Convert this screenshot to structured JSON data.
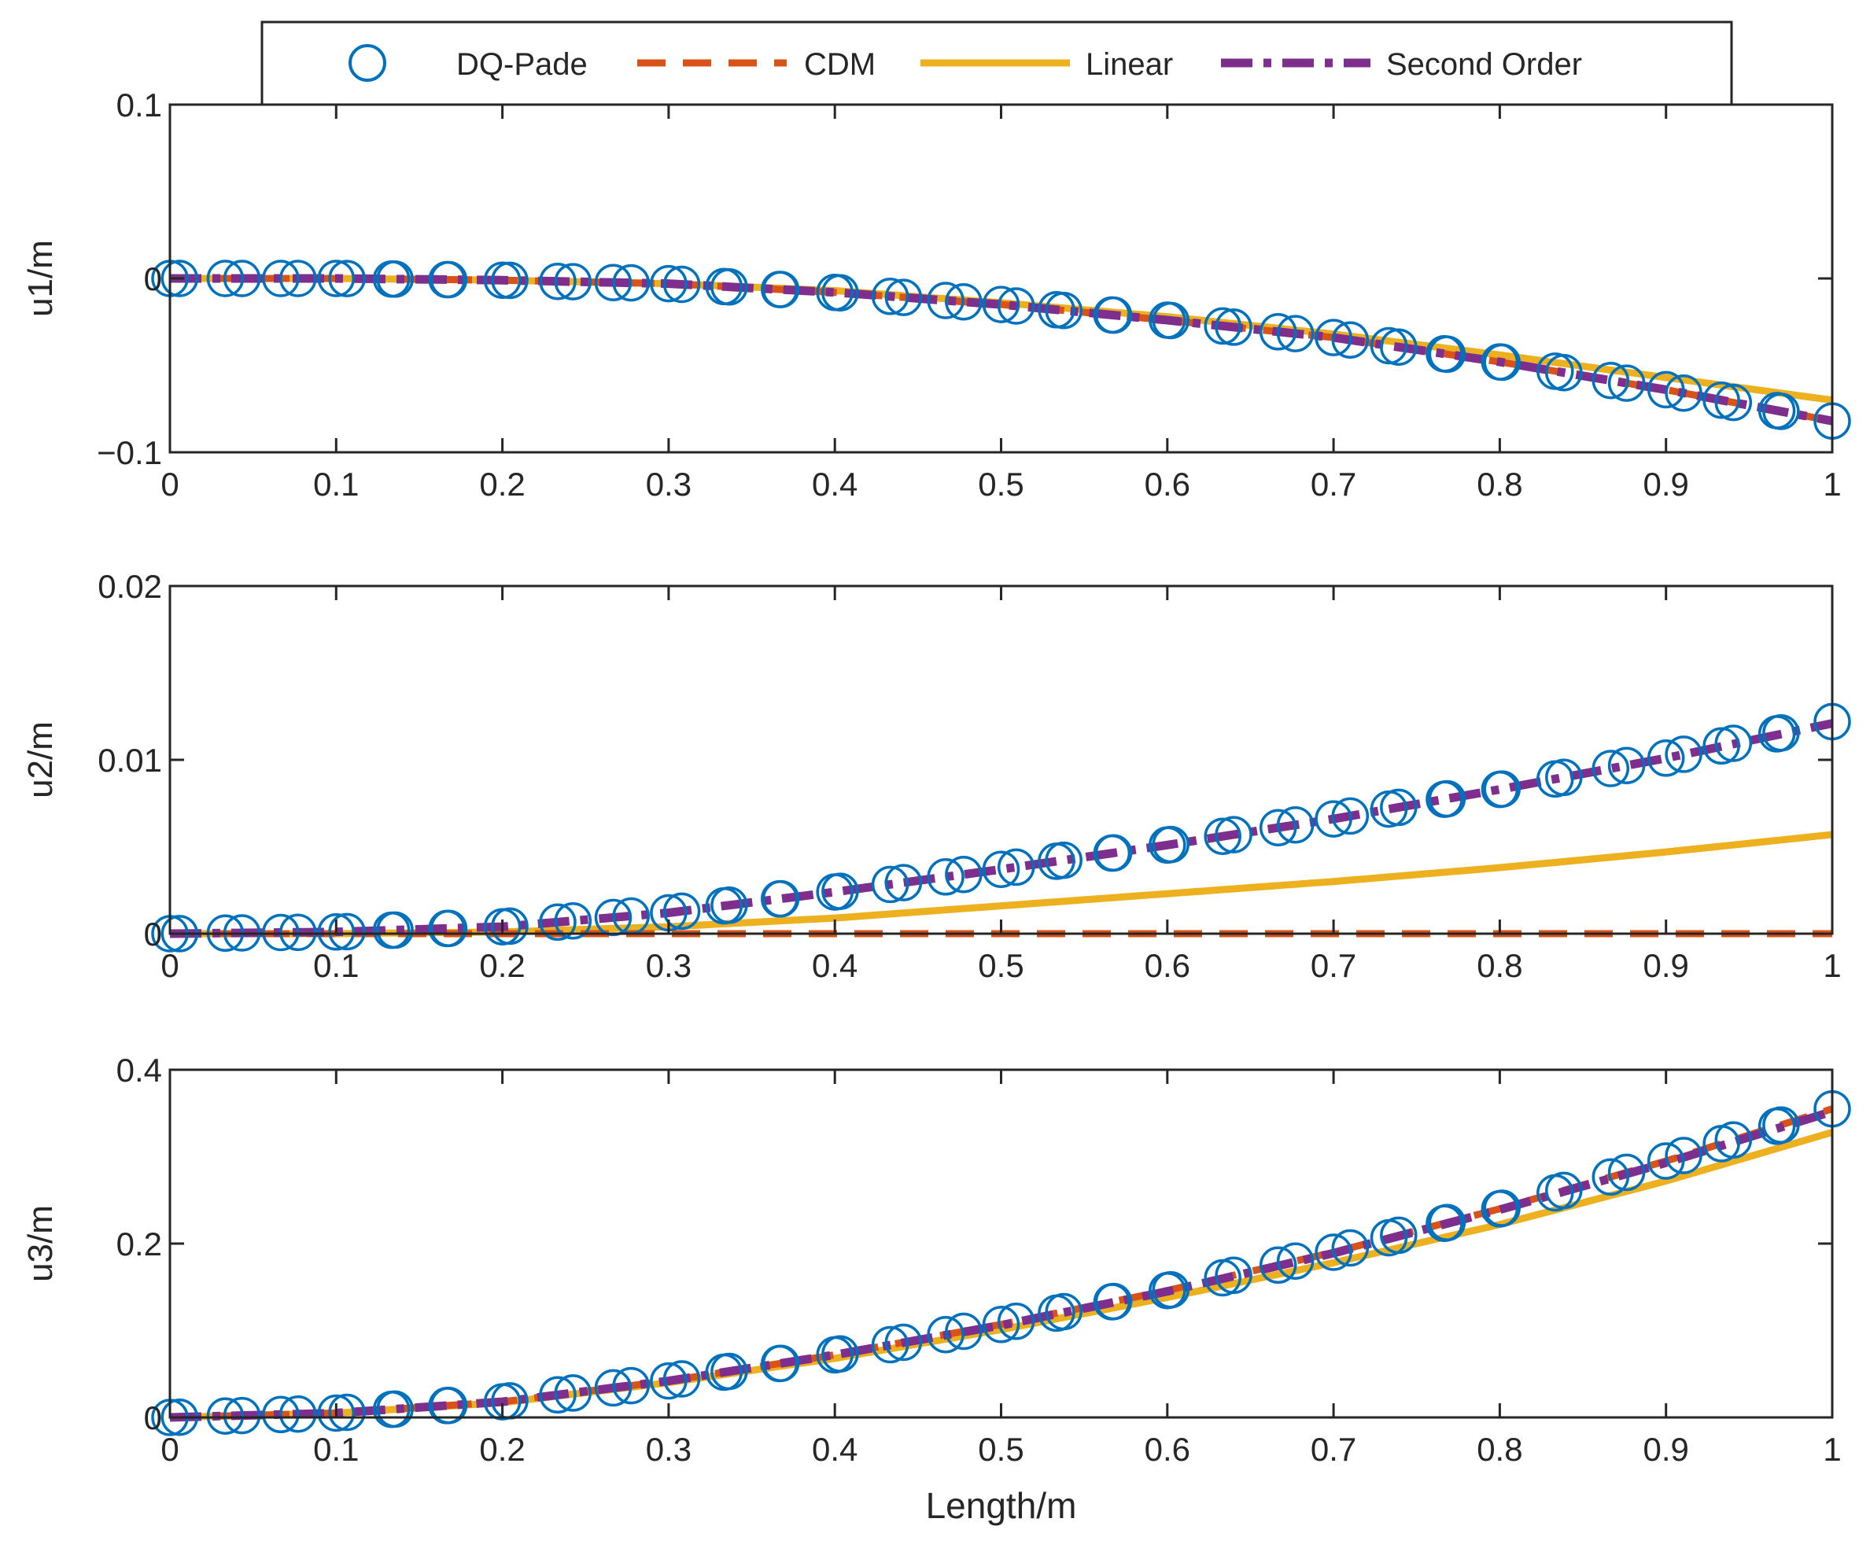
{
  "legend": {
    "entries": [
      {
        "label": "DQ-Pade",
        "style": "marker-circle",
        "color": "#0072BD"
      },
      {
        "label": "CDM",
        "style": "dashed",
        "color": "#D95319"
      },
      {
        "label": "Linear",
        "style": "solid",
        "color": "#EDB120"
      },
      {
        "label": "Second Order",
        "style": "dashdot",
        "color": "#7E2F8E"
      }
    ]
  },
  "chart_data": [
    {
      "type": "line",
      "title": "",
      "xlabel": "",
      "ylabel": "u1/m",
      "xlim": [
        0,
        1
      ],
      "ylim": [
        -0.1,
        0.1
      ],
      "xticks": [
        0,
        0.1,
        0.2,
        0.3,
        0.4,
        0.5,
        0.6,
        0.7,
        0.8,
        0.9,
        1
      ],
      "xtick_labels": [
        "0",
        "0.1",
        "0.2",
        "0.3",
        "0.4",
        "0.5",
        "0.6",
        "0.7",
        "0.8",
        "0.9",
        "1"
      ],
      "yticks": [
        -0.1,
        0,
        0.1
      ],
      "ytick_labels": [
        "−0.1",
        "0",
        "0.1"
      ],
      "x": [
        0,
        0.1,
        0.2,
        0.3,
        0.4,
        0.5,
        0.6,
        0.7,
        0.8,
        0.9,
        1.0
      ],
      "series": [
        {
          "name": "DQ-Pade",
          "values": [
            0,
            0,
            -0.001,
            -0.003,
            -0.008,
            -0.015,
            -0.024,
            -0.034,
            -0.048,
            -0.064,
            -0.082
          ]
        },
        {
          "name": "CDM",
          "values": [
            0,
            0,
            -0.001,
            -0.003,
            -0.008,
            -0.015,
            -0.024,
            -0.034,
            -0.048,
            -0.064,
            -0.082
          ]
        },
        {
          "name": "Linear",
          "values": [
            0,
            0,
            -0.001,
            -0.003,
            -0.007,
            -0.014,
            -0.022,
            -0.032,
            -0.044,
            -0.057,
            -0.07
          ]
        },
        {
          "name": "Second Order",
          "values": [
            0,
            0,
            -0.001,
            -0.003,
            -0.008,
            -0.015,
            -0.024,
            -0.034,
            -0.048,
            -0.064,
            -0.082
          ]
        }
      ]
    },
    {
      "type": "line",
      "title": "",
      "xlabel": "",
      "ylabel": "u2/m",
      "xlim": [
        0,
        1
      ],
      "ylim": [
        0,
        0.02
      ],
      "xticks": [
        0,
        0.1,
        0.2,
        0.3,
        0.4,
        0.5,
        0.6,
        0.7,
        0.8,
        0.9,
        1
      ],
      "xtick_labels": [
        "0",
        "0.1",
        "0.2",
        "0.3",
        "0.4",
        "0.5",
        "0.6",
        "0.7",
        "0.8",
        "0.9",
        "1"
      ],
      "yticks": [
        0,
        0.01,
        0.02
      ],
      "ytick_labels": [
        "0",
        "0.01",
        "0.02"
      ],
      "x": [
        0,
        0.1,
        0.2,
        0.3,
        0.4,
        0.5,
        0.6,
        0.7,
        0.8,
        0.9,
        1.0
      ],
      "series": [
        {
          "name": "DQ-Pade",
          "values": [
            0,
            0.0001,
            0.0004,
            0.0012,
            0.0024,
            0.0037,
            0.0051,
            0.0066,
            0.0083,
            0.0101,
            0.0122
          ]
        },
        {
          "name": "CDM",
          "values": [
            0,
            0,
            0,
            0,
            0,
            0,
            0,
            0,
            0,
            0,
            0
          ]
        },
        {
          "name": "Linear",
          "values": [
            0,
            0,
            0.0001,
            0.0004,
            0.0009,
            0.0016,
            0.0023,
            0.003,
            0.0038,
            0.0047,
            0.0057
          ]
        },
        {
          "name": "Second Order",
          "values": [
            0,
            0.0001,
            0.0004,
            0.0012,
            0.0024,
            0.0037,
            0.0051,
            0.0066,
            0.0083,
            0.0101,
            0.0121
          ]
        }
      ]
    },
    {
      "type": "line",
      "title": "",
      "xlabel": "Length/m",
      "ylabel": "u3/m",
      "xlim": [
        0,
        1
      ],
      "ylim": [
        0,
        0.4
      ],
      "xticks": [
        0,
        0.1,
        0.2,
        0.3,
        0.4,
        0.5,
        0.6,
        0.7,
        0.8,
        0.9,
        1
      ],
      "xtick_labels": [
        "0",
        "0.1",
        "0.2",
        "0.3",
        "0.4",
        "0.5",
        "0.6",
        "0.7",
        "0.8",
        "0.9",
        "1"
      ],
      "yticks": [
        0,
        0.2,
        0.4
      ],
      "ytick_labels": [
        "0",
        "0.2",
        "0.4"
      ],
      "x": [
        0,
        0.1,
        0.2,
        0.3,
        0.4,
        0.5,
        0.6,
        0.7,
        0.8,
        0.9,
        1.0
      ],
      "series": [
        {
          "name": "DQ-Pade",
          "values": [
            0,
            0.005,
            0.018,
            0.042,
            0.072,
            0.107,
            0.146,
            0.19,
            0.24,
            0.295,
            0.355
          ]
        },
        {
          "name": "CDM",
          "values": [
            0,
            0.005,
            0.018,
            0.042,
            0.072,
            0.107,
            0.146,
            0.19,
            0.24,
            0.295,
            0.355
          ]
        },
        {
          "name": "Linear",
          "values": [
            0,
            0.005,
            0.017,
            0.04,
            0.068,
            0.101,
            0.138,
            0.178,
            0.222,
            0.272,
            0.328
          ]
        },
        {
          "name": "Second Order",
          "values": [
            0,
            0.005,
            0.018,
            0.042,
            0.072,
            0.106,
            0.145,
            0.189,
            0.239,
            0.293,
            0.352
          ]
        }
      ]
    }
  ]
}
